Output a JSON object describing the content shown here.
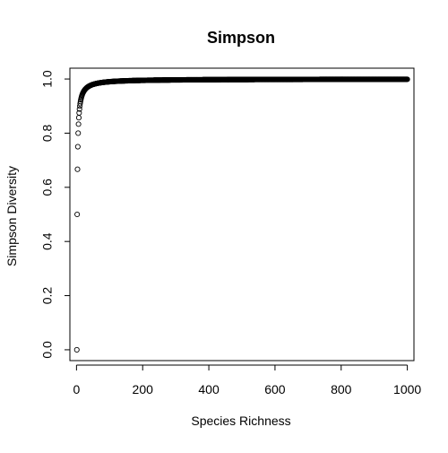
{
  "chart_data": {
    "type": "scatter",
    "title": "Simpson",
    "xlabel": "Species Richness",
    "ylabel": "Simpson Diversity",
    "xlim": [
      -20,
      1020
    ],
    "ylim": [
      -0.04,
      1.04
    ],
    "xticks": [
      0,
      200,
      400,
      600,
      800,
      1000
    ],
    "xtick_labels": [
      "0",
      "200",
      "400",
      "600",
      "800",
      "1000"
    ],
    "yticks": [
      0.0,
      0.2,
      0.4,
      0.6,
      0.8,
      1.0
    ],
    "ytick_labels": [
      "0.0",
      "0.2",
      "0.4",
      "0.6",
      "0.8",
      "1.0"
    ],
    "marker": "open-circle",
    "grid": false,
    "legend": "none",
    "series": [
      {
        "x_start": 1,
        "x_end": 1000,
        "x_step": 1,
        "y_formula": "1 - 1/x"
      }
    ],
    "colors": {
      "points": "#000000",
      "axes": "#000000",
      "background": "#ffffff"
    }
  }
}
